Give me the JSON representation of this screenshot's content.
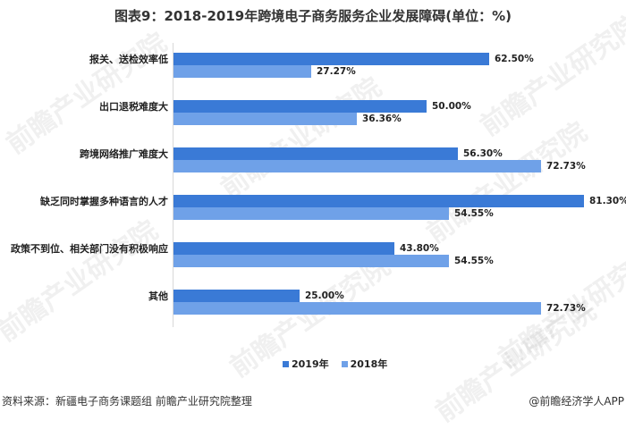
{
  "title": "图表9：2018-2019年跨境电子商务服务企业发展障碍(单位：%)",
  "watermark_text": "前瞻产业研究院",
  "colors": {
    "series_2019": "#3a7ad6",
    "series_2018": "#6fa1e8",
    "axis": "#d8d8d8"
  },
  "legend": {
    "items": [
      {
        "label": "2019年",
        "color": "#3a7ad6"
      },
      {
        "label": "2018年",
        "color": "#6fa1e8"
      }
    ]
  },
  "footer": {
    "source": "资料来源：新疆电子商务课题组 前瞻产业研究院整理",
    "credit": "@前瞻经济学人APP"
  },
  "chart_data": {
    "type": "bar",
    "orientation": "horizontal",
    "title": "图表9：2018-2019年跨境电子商务服务企业发展障碍(单位：%)",
    "xlabel": "",
    "ylabel": "",
    "unit": "%",
    "xlim": [
      0,
      100
    ],
    "grid": false,
    "legend_position": "bottom",
    "categories": [
      "报关、送检效率低",
      "出口退税难度大",
      "跨境网络推广难度大",
      "缺乏同时掌握多种语言的人才",
      "政策不到位、相关部门没有积极响应",
      "其他"
    ],
    "series": [
      {
        "name": "2019年",
        "values": [
          62.5,
          50.0,
          56.3,
          81.3,
          43.8,
          25.0
        ],
        "labels": [
          "62.50%",
          "50.00%",
          "56.30%",
          "81.30%",
          "43.80%",
          "25.00%"
        ]
      },
      {
        "name": "2018年",
        "values": [
          27.27,
          36.36,
          72.73,
          54.55,
          54.55,
          72.73
        ],
        "labels": [
          "27.27%",
          "36.36%",
          "72.73%",
          "54.55%",
          "54.55%",
          "72.73%"
        ]
      }
    ]
  }
}
